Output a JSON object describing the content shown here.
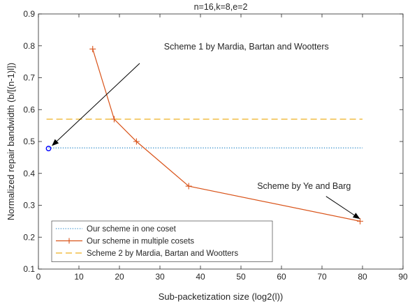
{
  "chart_data": {
    "type": "line",
    "title": "n=16,k=8,e=2",
    "xlabel": "Sub-packetization size (log2(l))",
    "ylabel": "Normalized repair bandwidth (b/[(n-1)l])",
    "xlim": [
      0,
      90
    ],
    "ylim": [
      0.1,
      0.9
    ],
    "xticks": [
      0,
      10,
      20,
      30,
      40,
      50,
      60,
      70,
      80,
      90
    ],
    "yticks": [
      0.1,
      0.2,
      0.3,
      0.4,
      0.5,
      0.6,
      0.7,
      0.8,
      0.9
    ],
    "grid": false,
    "legend_position": "bottom-left",
    "series": [
      {
        "name": "Our scheme in one coset",
        "style": "dotted",
        "color": "#0072BD",
        "x": [
          2.5,
          80
        ],
        "y": [
          0.48,
          0.48
        ]
      },
      {
        "name": "Our scheme in multiple cosets",
        "style": "solid-plus",
        "color": "#D95319",
        "x": [
          13.4,
          18.7,
          24.2,
          37.1,
          79.4
        ],
        "y": [
          0.79,
          0.57,
          0.5,
          0.36,
          0.25
        ]
      },
      {
        "name": "Scheme 2 by Mardia, Bartan and Wootters",
        "style": "dashed",
        "color": "#EDB120",
        "x": [
          2,
          80
        ],
        "y": [
          0.57,
          0.57
        ]
      }
    ],
    "single_point": {
      "color": "#0000FF",
      "marker": "circle",
      "x": 2.5,
      "y": 0.478
    },
    "annotations": [
      {
        "text": "Scheme 1 by Mardia, Bartan and Wootters",
        "text_x": 31,
        "text_y": 0.789,
        "arrow_from": [
          25,
          0.745
        ],
        "arrow_to": [
          3.3,
          0.486
        ]
      },
      {
        "text": "Scheme by Ye and Barg",
        "text_x": 54,
        "text_y": 0.351,
        "arrow_from": [
          71,
          0.328
        ],
        "arrow_to": [
          79.4,
          0.257
        ]
      }
    ]
  }
}
